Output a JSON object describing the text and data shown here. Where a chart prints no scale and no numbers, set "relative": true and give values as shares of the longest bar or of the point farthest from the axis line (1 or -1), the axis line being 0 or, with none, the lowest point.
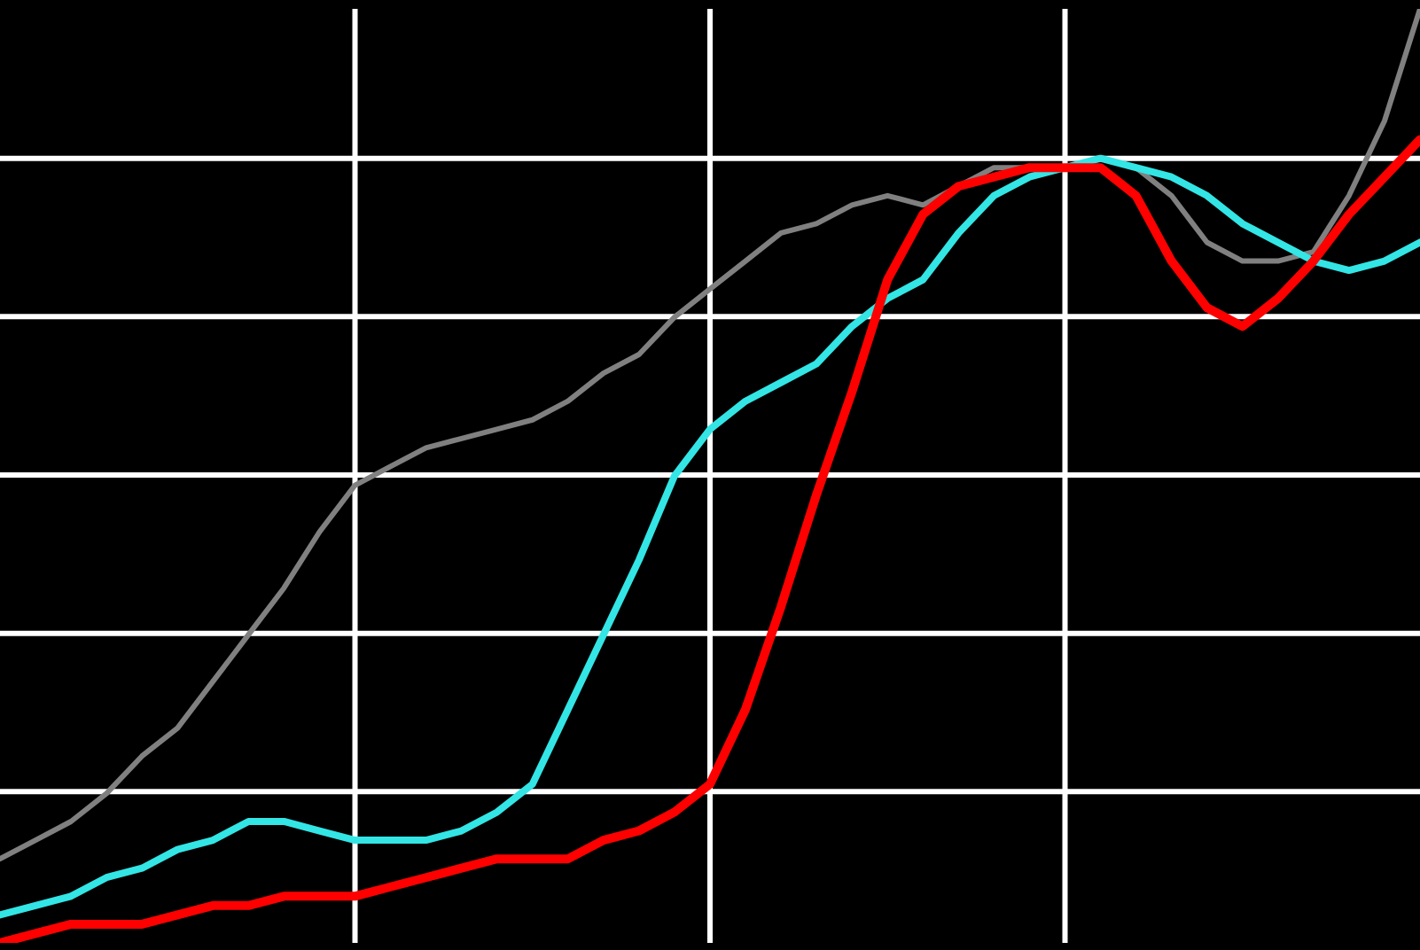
{
  "chart_data": {
    "type": "line",
    "relative": true,
    "grid": true,
    "marker": "none",
    "categories": [
      null,
      null,
      null,
      null,
      null,
      null,
      null,
      null,
      null,
      null,
      null,
      null,
      null,
      null,
      null,
      null,
      null,
      null,
      null,
      null,
      null,
      null,
      null,
      null,
      null,
      null,
      null,
      null,
      null,
      null,
      null,
      null,
      null,
      null,
      null,
      null,
      null,
      null,
      null,
      null,
      null
    ],
    "series": [
      {
        "color": "#808080",
        "values": [
          0.09,
          0.11,
          0.13,
          0.16,
          0.2,
          0.23,
          0.28,
          0.33,
          0.38,
          0.44,
          0.49,
          0.51,
          0.53,
          0.54,
          0.55,
          0.56,
          0.58,
          0.61,
          0.63,
          0.67,
          0.7,
          0.73,
          0.76,
          0.77,
          0.79,
          0.8,
          0.79,
          0.81,
          0.83,
          0.83,
          0.83,
          0.84,
          0.83,
          0.8,
          0.75,
          0.73,
          0.73,
          0.74,
          0.8,
          0.88,
          1
        ]
      },
      {
        "color": "#33e5e5",
        "values": [
          0.03,
          0.04,
          0.05,
          0.07,
          0.08,
          0.1,
          0.11,
          0.13,
          0.13,
          0.12,
          0.11,
          0.11,
          0.11,
          0.12,
          0.14,
          0.17,
          0.25,
          0.33,
          0.41,
          0.5,
          0.55,
          0.58,
          0.6,
          0.62,
          0.66,
          0.69,
          0.71,
          0.76,
          0.8,
          0.82,
          0.83,
          0.84,
          0.83,
          0.82,
          0.8,
          0.77,
          0.75,
          0.73,
          0.72,
          0.73,
          0.75
        ]
      },
      {
        "color": "#ff0000",
        "values": [
          0,
          0.01,
          0.02,
          0.02,
          0.02,
          0.03,
          0.04,
          0.04,
          0.05,
          0.05,
          0.05,
          0.06,
          0.07,
          0.08,
          0.09,
          0.09,
          0.09,
          0.11,
          0.12,
          0.14,
          0.17,
          0.25,
          0.36,
          0.48,
          0.59,
          0.71,
          0.78,
          0.81,
          0.82,
          0.83,
          0.83,
          0.83,
          0.8,
          0.73,
          0.68,
          0.66,
          0.69,
          0.73,
          0.78,
          0.82,
          0.86
        ]
      }
    ]
  }
}
